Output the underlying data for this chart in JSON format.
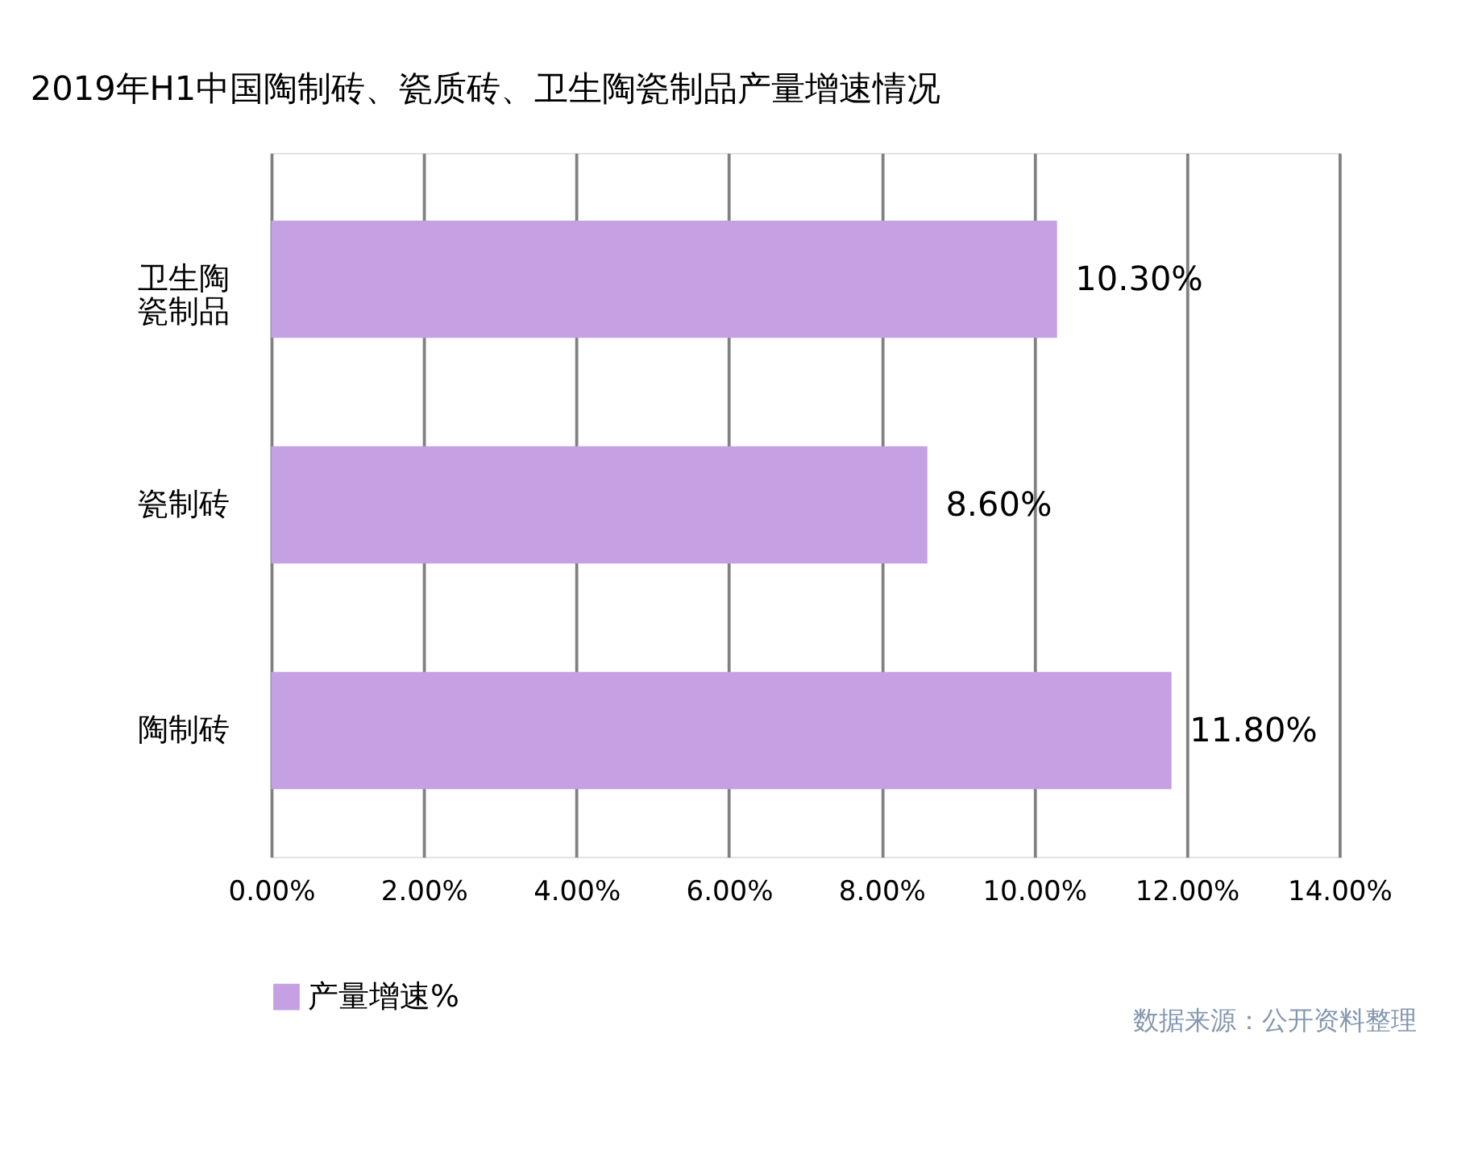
{
  "chart_data": {
    "type": "bar",
    "orientation": "horizontal",
    "title": "2019年H1中国陶制砖、瓷质砖、卫生陶瓷制品产量增速情况",
    "categories": [
      "卫生陶瓷制品",
      "瓷制砖",
      "陶制砖"
    ],
    "series": [
      {
        "name": "产量增速%",
        "color": "#c5a0e2",
        "values": [
          10.3,
          8.6,
          11.8
        ],
        "value_labels": [
          "10.30%",
          "8.60%",
          "11.80%"
        ]
      }
    ],
    "xlim": [
      0,
      14
    ],
    "xticks": [
      {
        "value": 0,
        "label": "0.00%"
      },
      {
        "value": 2,
        "label": "2.00%"
      },
      {
        "value": 4,
        "label": "4.00%"
      },
      {
        "value": 6,
        "label": "6.00%"
      },
      {
        "value": 8,
        "label": "8.00%"
      },
      {
        "value": 10,
        "label": "10.00%"
      },
      {
        "value": 12,
        "label": "12.00%"
      },
      {
        "value": 14,
        "label": "14.00%"
      }
    ],
    "grid": "x",
    "legend": "bottom",
    "annotations": [
      "数据来源：公开资料整理"
    ]
  }
}
